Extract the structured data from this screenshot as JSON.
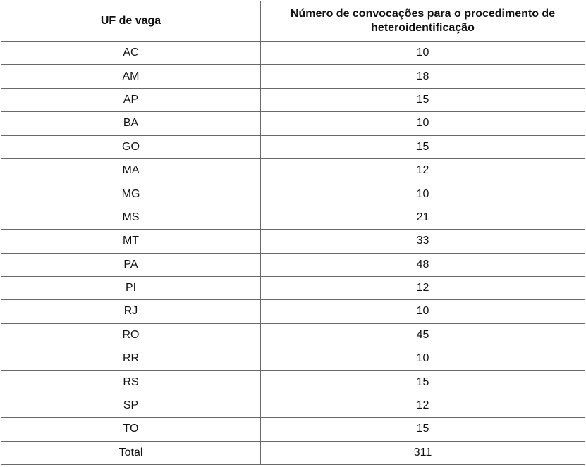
{
  "table": {
    "headers": [
      "UF de vaga",
      "Número de convocações para o procedimento de heteroidentificação"
    ],
    "rows": [
      {
        "uf": "AC",
        "count": "10"
      },
      {
        "uf": "AM",
        "count": "18"
      },
      {
        "uf": "AP",
        "count": "15"
      },
      {
        "uf": "BA",
        "count": "10"
      },
      {
        "uf": "GO",
        "count": "15"
      },
      {
        "uf": "MA",
        "count": "12"
      },
      {
        "uf": "MG",
        "count": "10"
      },
      {
        "uf": "MS",
        "count": "21"
      },
      {
        "uf": "MT",
        "count": "33"
      },
      {
        "uf": "PA",
        "count": "48"
      },
      {
        "uf": "PI",
        "count": "12"
      },
      {
        "uf": "RJ",
        "count": "10"
      },
      {
        "uf": "RO",
        "count": "45"
      },
      {
        "uf": "RR",
        "count": "10"
      },
      {
        "uf": "RS",
        "count": "15"
      },
      {
        "uf": "SP",
        "count": "12"
      },
      {
        "uf": "TO",
        "count": "15"
      }
    ],
    "total": {
      "label": "Total",
      "count": "311"
    }
  }
}
